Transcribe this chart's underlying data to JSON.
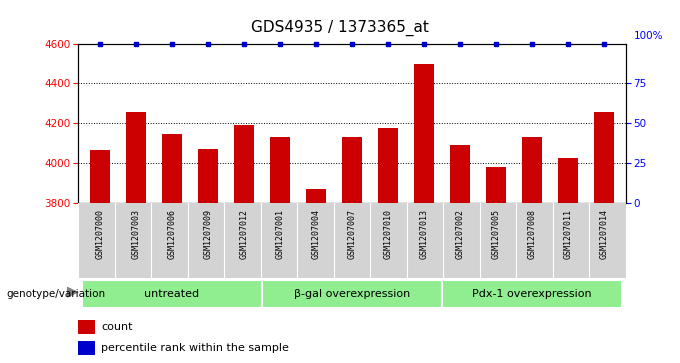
{
  "title": "GDS4935 / 1373365_at",
  "samples": [
    "GSM1207000",
    "GSM1207003",
    "GSM1207006",
    "GSM1207009",
    "GSM1207012",
    "GSM1207001",
    "GSM1207004",
    "GSM1207007",
    "GSM1207010",
    "GSM1207013",
    "GSM1207002",
    "GSM1207005",
    "GSM1207008",
    "GSM1207011",
    "GSM1207014"
  ],
  "counts": [
    4065,
    4255,
    4145,
    4070,
    4190,
    4130,
    3870,
    4130,
    4175,
    4500,
    4090,
    3980,
    4130,
    4025,
    4255
  ],
  "percentiles": [
    100,
    100,
    100,
    100,
    100,
    100,
    100,
    100,
    100,
    100,
    100,
    100,
    100,
    100,
    100
  ],
  "bar_color": "#cc0000",
  "percentile_color": "#0000cc",
  "ylim_left": [
    3800,
    4600
  ],
  "ylim_right": [
    0,
    100
  ],
  "yticks_left": [
    3800,
    4000,
    4200,
    4400,
    4600
  ],
  "yticks_right": [
    0,
    25,
    50,
    75,
    100
  ],
  "groups": [
    {
      "label": "untreated",
      "start": 0,
      "end": 5
    },
    {
      "label": "β-gal overexpression",
      "start": 5,
      "end": 10
    },
    {
      "label": "Pdx-1 overexpression",
      "start": 10,
      "end": 15
    }
  ],
  "group_color": "#90ee90",
  "sample_bg_color": "#d3d3d3",
  "legend_count_label": "count",
  "legend_percentile_label": "percentile rank within the sample",
  "genotype_label": "genotype/variation",
  "background_color": "#ffffff",
  "title_fontsize": 11,
  "tick_fontsize": 7.5,
  "sample_fontsize": 6,
  "group_fontsize": 8,
  "legend_fontsize": 8
}
